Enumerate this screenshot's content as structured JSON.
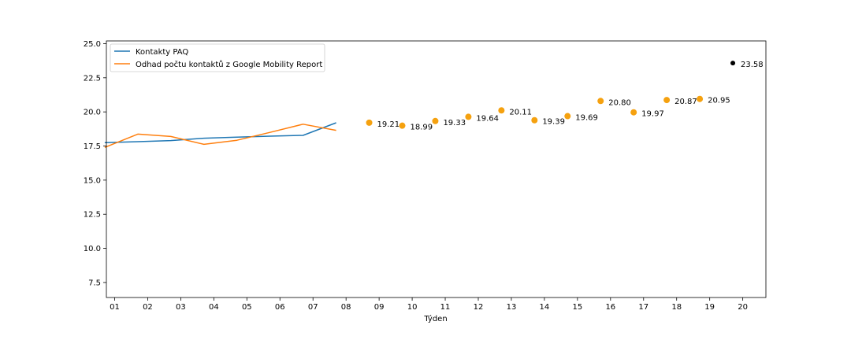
{
  "chart_data": {
    "type": "line",
    "xlabel": "Týden",
    "ylabel": "",
    "ylim": [
      6.4,
      25.2
    ],
    "xlim": [
      0.75,
      20.7
    ],
    "yticks": [
      7.5,
      10.0,
      12.5,
      15.0,
      17.5,
      20.0,
      22.5,
      25.0
    ],
    "ytick_labels": [
      "7.5",
      "10.0",
      "12.5",
      "15.0",
      "17.5",
      "20.0",
      "22.5",
      "25.0"
    ],
    "xticks": [
      1,
      2,
      3,
      4,
      5,
      6,
      7,
      8,
      9,
      10,
      11,
      12,
      13,
      14,
      15,
      16,
      17,
      18,
      19,
      20
    ],
    "xtick_labels": [
      "01",
      "02",
      "03",
      "04",
      "05",
      "06",
      "07",
      "08",
      "09",
      "10",
      "11",
      "12",
      "13",
      "14",
      "15",
      "16",
      "17",
      "18",
      "19",
      "20"
    ],
    "grid": false,
    "legend_position": "top-left",
    "series": [
      {
        "name": "Kontakty PAQ",
        "style": "line",
        "color": "#1f77b4",
        "x": [
          0.7,
          1.7,
          2.7,
          3.7,
          4.7,
          5.7,
          6.7,
          7.7
        ],
        "y": [
          17.75,
          17.82,
          17.9,
          18.07,
          18.15,
          18.22,
          18.28,
          19.2
        ]
      },
      {
        "name": "Odhad počtu kontaktů z Google Mobility Report",
        "style": "line",
        "color": "#ff7f0e",
        "x": [
          0.7,
          1.7,
          2.7,
          3.7,
          4.7,
          5.7,
          6.7,
          7.7
        ],
        "y": [
          17.4,
          18.37,
          18.2,
          17.62,
          17.92,
          18.5,
          19.1,
          18.65
        ]
      },
      {
        "style": "scatter",
        "color": "#f5a10f",
        "x": [
          8.7,
          9.7,
          10.7,
          11.7,
          12.7,
          13.7,
          14.7,
          15.7,
          16.7,
          17.7,
          18.7
        ],
        "y": [
          19.21,
          18.99,
          19.33,
          19.64,
          20.11,
          19.39,
          19.69,
          20.8,
          19.97,
          20.87,
          20.95
        ],
        "labels": [
          "19.21",
          "18.99",
          "19.33",
          "19.64",
          "20.11",
          "19.39",
          "19.69",
          "20.80",
          "19.97",
          "20.87",
          "20.95"
        ]
      },
      {
        "style": "scatter",
        "color": "#000000",
        "x": [
          19.7
        ],
        "y": [
          23.58
        ],
        "labels": [
          "23.58"
        ]
      }
    ]
  }
}
